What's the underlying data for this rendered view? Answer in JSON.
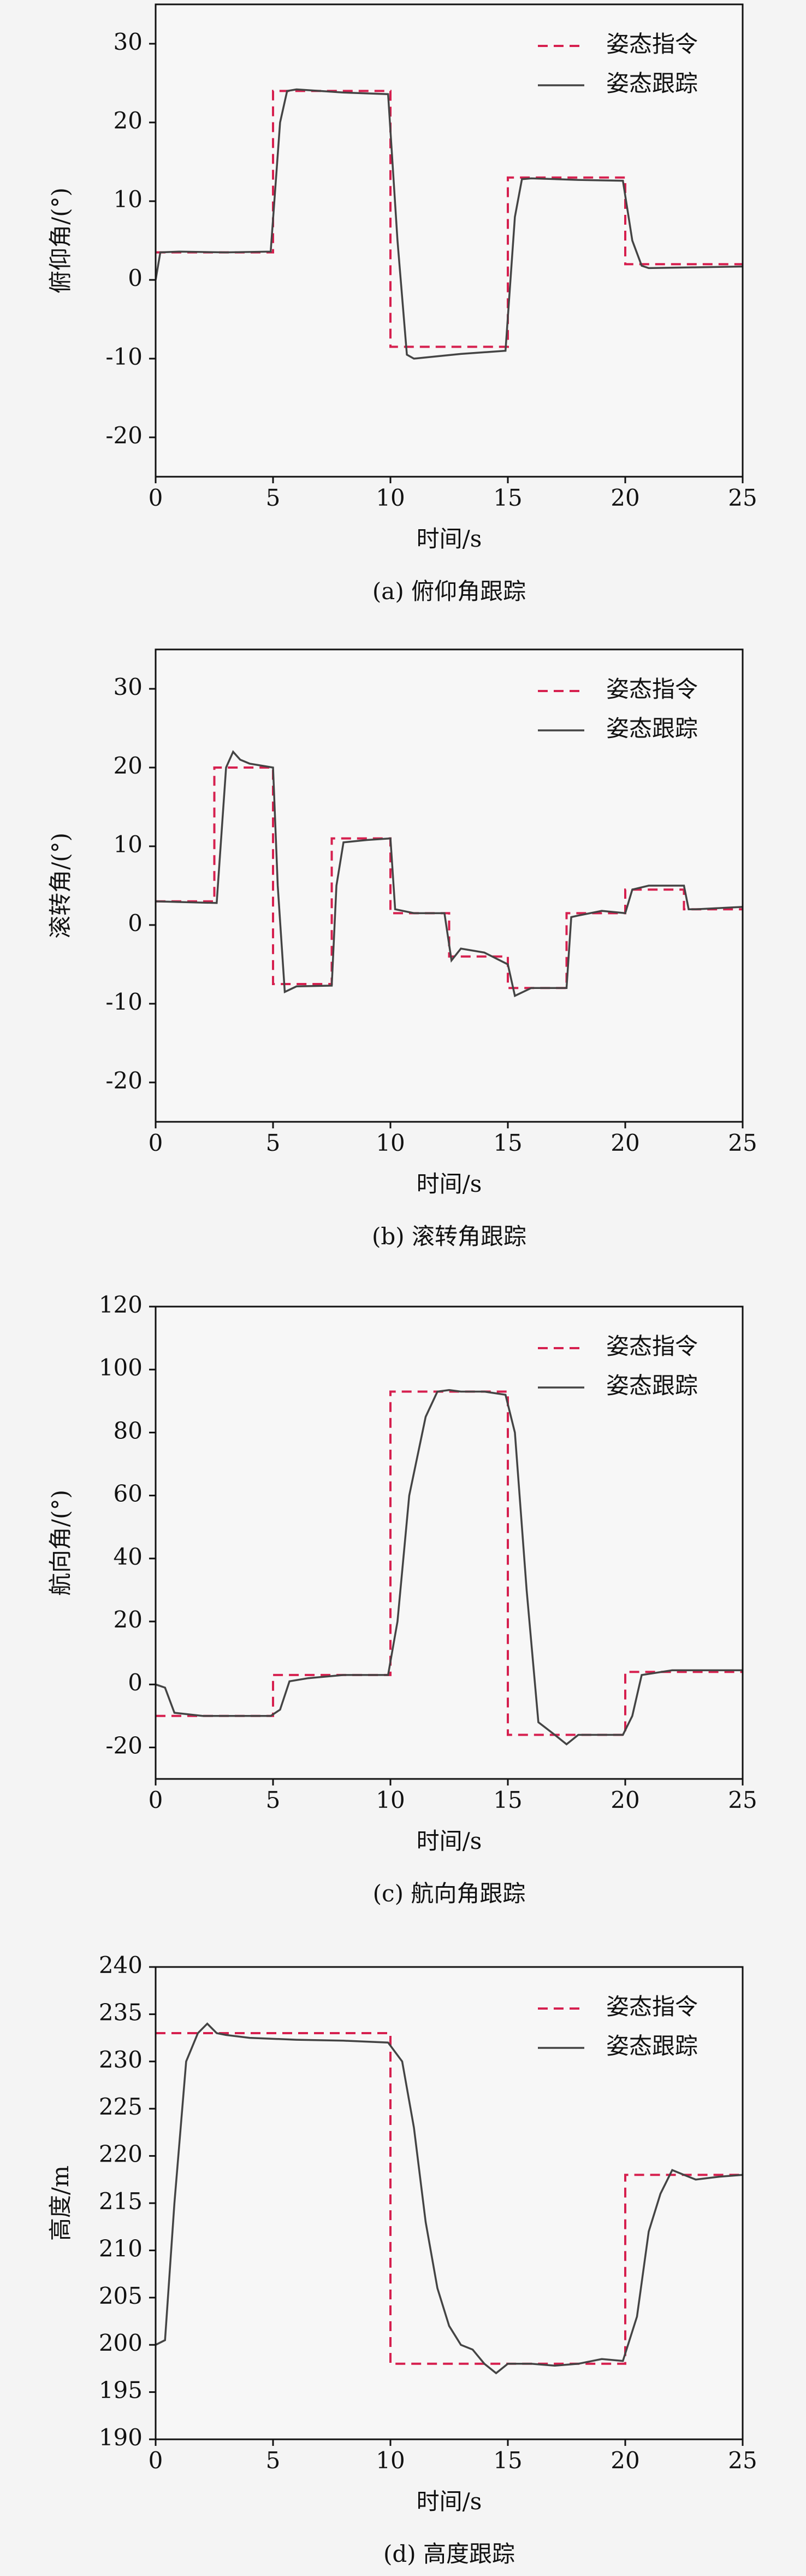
{
  "chart_data": [
    {
      "type": "line",
      "title": "(a) 俯仰角跟踪",
      "x_label": "时间/s",
      "y_label": "俯仰角/(°)",
      "xlim": [
        0,
        25
      ],
      "xticks": [
        0,
        5,
        10,
        15,
        20,
        25
      ],
      "ylim": [
        -25,
        35
      ],
      "yticks": [
        -20,
        -10,
        0,
        10,
        20,
        30
      ],
      "legend": "upper right",
      "series": [
        {
          "name": "姿态指令",
          "color": "#d6204f",
          "dashed": true,
          "x": [
            0,
            5,
            5,
            10,
            10,
            15,
            15,
            20,
            20,
            25
          ],
          "values": [
            3.5,
            3.5,
            24,
            24,
            -8.5,
            -8.5,
            13,
            13,
            2,
            2
          ]
        },
        {
          "name": "姿态跟踪",
          "color": "#444444",
          "dashed": false,
          "x": [
            0,
            0.2,
            1,
            3,
            4.9,
            5.3,
            5.6,
            6,
            8,
            9.9,
            10.3,
            10.7,
            11,
            13,
            14.9,
            15.3,
            15.6,
            16,
            18,
            19.9,
            20.3,
            20.7,
            21,
            23,
            25
          ],
          "values": [
            0,
            3.5,
            3.6,
            3.5,
            3.6,
            20,
            24,
            24.2,
            23.8,
            23.6,
            5,
            -9.5,
            -10,
            -9.4,
            -9,
            8,
            12.8,
            12.9,
            12.7,
            12.6,
            5,
            1.8,
            1.5,
            1.6,
            1.7
          ]
        }
      ]
    },
    {
      "type": "line",
      "title": "(b) 滚转角跟踪",
      "x_label": "时间/s",
      "y_label": "滚转角/(°)",
      "xlim": [
        0,
        25
      ],
      "xticks": [
        0,
        5,
        10,
        15,
        20,
        25
      ],
      "ylim": [
        -25,
        35
      ],
      "yticks": [
        -20,
        -10,
        0,
        10,
        20,
        30
      ],
      "legend": "upper right",
      "series": [
        {
          "name": "姿态指令",
          "color": "#d6204f",
          "dashed": true,
          "x": [
            0,
            2.5,
            2.5,
            5,
            5,
            7.5,
            7.5,
            10,
            10,
            12.5,
            12.5,
            15,
            15,
            17.5,
            17.5,
            20,
            20,
            22.5,
            22.5,
            25
          ],
          "values": [
            3,
            3,
            20,
            20,
            -7.5,
            -7.5,
            11,
            11,
            1.5,
            1.5,
            -4,
            -4,
            -8,
            -8,
            1.5,
            1.5,
            4.5,
            4.5,
            2,
            2
          ]
        },
        {
          "name": "姿态跟踪",
          "color": "#444444",
          "dashed": false,
          "x": [
            0,
            2.6,
            3,
            3.3,
            3.6,
            4,
            5,
            5.2,
            5.5,
            6,
            7.5,
            7.7,
            8,
            9,
            10,
            10.2,
            11,
            12.3,
            12.6,
            13,
            14,
            15,
            15.3,
            16,
            17.5,
            17.7,
            18,
            19,
            20,
            20.3,
            21,
            22.5,
            22.7,
            23,
            25
          ],
          "values": [
            3,
            2.8,
            20,
            22,
            21,
            20.5,
            20,
            5,
            -8.5,
            -7.8,
            -7.7,
            5,
            10.5,
            10.8,
            11,
            2,
            1.5,
            1.5,
            -4.5,
            -3,
            -3.5,
            -5,
            -9,
            -8,
            -8,
            1,
            1.2,
            1.8,
            1.5,
            4.5,
            5,
            5,
            2,
            2,
            2.3
          ]
        }
      ]
    },
    {
      "type": "line",
      "title": "(c) 航向角跟踪",
      "x_label": "时间/s",
      "y_label": "航向角/(°)",
      "xlim": [
        0,
        25
      ],
      "xticks": [
        0,
        5,
        10,
        15,
        20,
        25
      ],
      "ylim": [
        -30,
        120
      ],
      "yticks": [
        -20,
        0,
        20,
        40,
        60,
        80,
        100,
        120
      ],
      "legend": "upper right",
      "series": [
        {
          "name": "姿态指令",
          "color": "#d6204f",
          "dashed": true,
          "x": [
            0,
            5,
            5,
            10,
            10,
            15,
            15,
            20,
            20,
            25
          ],
          "values": [
            -10,
            -10,
            3,
            3,
            93,
            93,
            -16,
            -16,
            4,
            4
          ]
        },
        {
          "name": "姿态跟踪",
          "color": "#444444",
          "dashed": false,
          "x": [
            0,
            0.4,
            0.8,
            2,
            4.9,
            5.3,
            5.7,
            6.5,
            8,
            9.9,
            10.3,
            10.8,
            11.5,
            12,
            12.5,
            13,
            14,
            14.9,
            15.3,
            15.8,
            16.3,
            17,
            17.5,
            18,
            19,
            19.9,
            20.3,
            20.7,
            22,
            25
          ],
          "values": [
            0,
            -1,
            -9,
            -10,
            -10,
            -8,
            1,
            2,
            3,
            3,
            20,
            60,
            85,
            93,
            93.5,
            93,
            93,
            92,
            80,
            30,
            -12,
            -16,
            -19,
            -16,
            -16,
            -16,
            -10,
            3,
            4.5,
            4.5
          ]
        }
      ]
    },
    {
      "type": "line",
      "title": "(d) 高度跟踪",
      "x_label": "时间/s",
      "y_label": "高度/m",
      "xlim": [
        0,
        25
      ],
      "xticks": [
        0,
        5,
        10,
        15,
        20,
        25
      ],
      "ylim": [
        190,
        240
      ],
      "yticks": [
        190,
        195,
        200,
        205,
        210,
        215,
        220,
        225,
        230,
        235,
        240
      ],
      "legend": "upper right",
      "series": [
        {
          "name": "姿态指令",
          "color": "#d6204f",
          "dashed": true,
          "x": [
            0,
            10,
            10,
            20,
            20,
            25
          ],
          "values": [
            233,
            233,
            198,
            198,
            218,
            218
          ]
        },
        {
          "name": "姿态跟踪",
          "color": "#444444",
          "dashed": false,
          "x": [
            0,
            0.4,
            0.8,
            1.3,
            1.8,
            2.2,
            2.6,
            3,
            4,
            6,
            8,
            9.9,
            10.5,
            11,
            11.5,
            12,
            12.5,
            13,
            13.5,
            14,
            14.5,
            15,
            16,
            17,
            18,
            19,
            19.9,
            20.5,
            21,
            21.5,
            22,
            22.5,
            23,
            24,
            25
          ],
          "values": [
            200,
            200.5,
            215,
            230,
            233,
            234,
            233,
            232.8,
            232.5,
            232.3,
            232.2,
            232,
            230,
            223,
            213,
            206,
            202,
            200,
            199.5,
            198,
            197,
            198,
            198,
            197.8,
            198,
            198.5,
            198.3,
            203,
            212,
            216,
            218.5,
            218,
            217.5,
            217.8,
            218
          ]
        }
      ]
    }
  ]
}
